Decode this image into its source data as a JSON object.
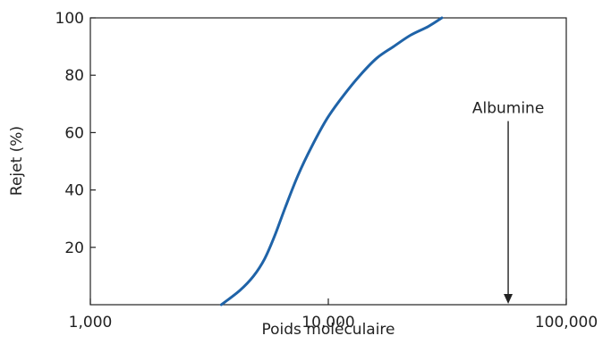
{
  "chart_data": {
    "type": "line",
    "title": "",
    "xlabel": "Poids moléculaire",
    "ylabel": "Rejet (%)",
    "x_scale": "log",
    "xlim": [
      1000,
      100000
    ],
    "ylim": [
      0,
      100
    ],
    "x_ticks": [
      {
        "value": 1000,
        "label": "1,000"
      },
      {
        "value": 10000,
        "label": "10,000"
      },
      {
        "value": 100000,
        "label": "100,000"
      }
    ],
    "y_ticks": [
      {
        "value": 20,
        "label": "20"
      },
      {
        "value": 40,
        "label": "40"
      },
      {
        "value": 60,
        "label": "60"
      },
      {
        "value": 80,
        "label": "80"
      },
      {
        "value": 100,
        "label": "100"
      }
    ],
    "grid": false,
    "legend": "none",
    "series": [
      {
        "color": "#1f63a8",
        "x": [
          3550,
          4250,
          4850,
          5400,
          5950,
          6600,
          7450,
          8500,
          9900,
          11600,
          13600,
          16000,
          18800,
          22200,
          26300,
          30000
        ],
        "y": [
          0,
          5,
          10,
          16,
          24,
          34,
          45,
          55,
          65,
          73,
          80,
          86,
          90,
          94,
          97,
          100
        ]
      }
    ],
    "annotations": [
      {
        "text": "Albumine",
        "x": 57000,
        "arrow_from_y": 64,
        "arrow_to_y": 0
      }
    ]
  }
}
